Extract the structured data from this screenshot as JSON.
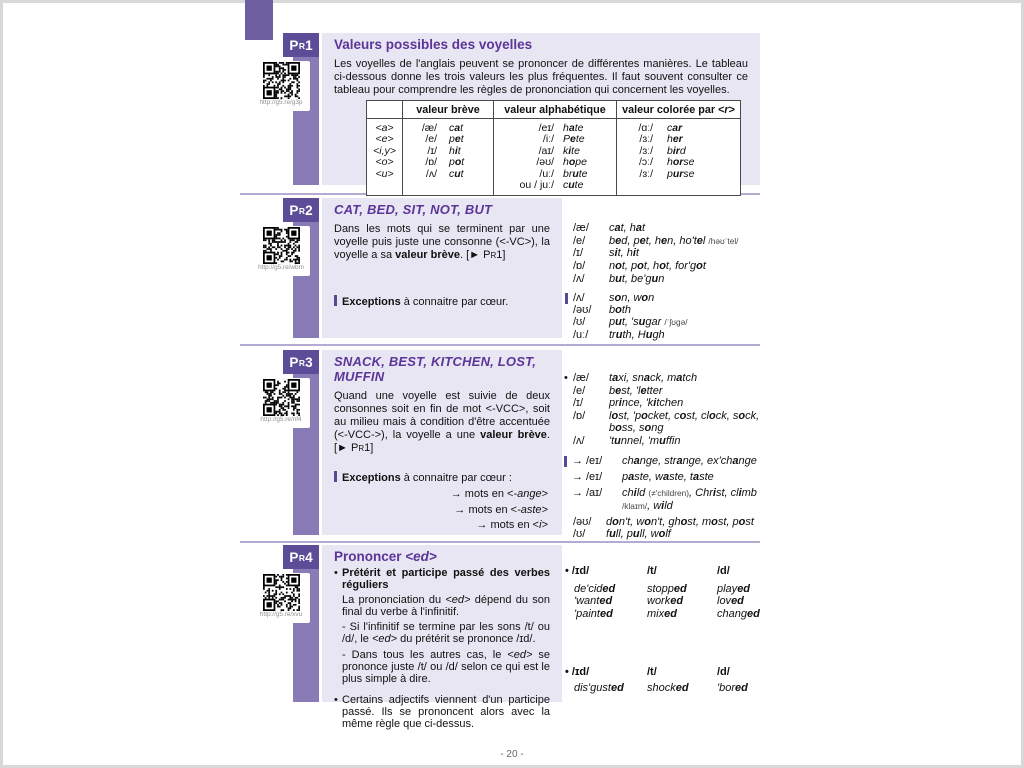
{
  "page": {
    "footer": "- 20 -",
    "bullet": "•"
  },
  "sections": [
    {
      "label": {
        "p": "P",
        "r": "R",
        "n": "1"
      },
      "qr_url": "http://g5.re/g3p",
      "title": "Valeurs possibles des voyelles",
      "intro": "Les voyelles de l'anglais peuvent se prononcer de différentes manières. Le tableau ci-dessous donne les trois valeurs les plus fréquentes. Il faut souvent consulter ce tableau pour comprendre les règles de prononciation qui concernent les voyelles.",
      "table": {
        "headers": {
          "breve": "valeur brève",
          "alpha": "valeur alphabétique",
          "rcolor": "valeur colorée par &lt;<i>r</i>&gt;"
        },
        "rows": [
          {
            "g": "<a>",
            "b_ipa": "/æ/",
            "b_w": "c<b>a</b>t",
            "a_ipa": "/eɪ/",
            "a_w": "h<b>a</b>te",
            "r_ipa": "/ɑː/",
            "r_w": "c<b>ar</b>"
          },
          {
            "g": "<e>",
            "b_ipa": "/e/",
            "b_w": "p<b>e</b>t",
            "a_ipa": "/iː/",
            "a_w": "P<b>e</b>te",
            "r_ipa": "/ɜː/",
            "r_w": "h<b>er</b>"
          },
          {
            "g": "<i,y>",
            "b_ipa": "/ɪ/",
            "b_w": "h<b>i</b>t",
            "a_ipa": "/aɪ/",
            "a_w": "k<b>i</b>te",
            "r_ipa": "/ɜː/",
            "r_w": "b<b>ir</b>d"
          },
          {
            "g": "<o>",
            "b_ipa": "/ɒ/",
            "b_w": "p<b>o</b>t",
            "a_ipa": "/əʊ/",
            "a_w": "h<b>o</b>pe",
            "r_ipa": "/ɔː/",
            "r_w": "h<b>or</b>se"
          },
          {
            "g": "<u>",
            "b_ipa": "/ʌ/",
            "b_w": "c<b>u</b>t",
            "a_ipa": "/uː/",
            "a_w": "br<b>u</b>te",
            "r_ipa": "/ɜː/",
            "r_w": "p<b>ur</b>se"
          },
          {
            "g": "",
            "b_ipa": "",
            "b_w": "",
            "a_ipa": "ou / juː/",
            "a_w": "c<b>u</b>te",
            "r_ipa": "",
            "r_w": ""
          }
        ]
      }
    },
    {
      "label": {
        "p": "P",
        "r": "R",
        "n": "2"
      },
      "qr_url": "http://g5.re/wbm",
      "title": "CAT, BED, SIT, NOT, BUT",
      "body": "Dans les mots qui se terminent par une voyelle puis juste une consonne (&lt;-VC&gt;), la voyelle a sa <b>valeur brève</b>. [► P<span class=\"sc\">R</span>1]",
      "exceptions_label": "<b>Exceptions</b> à connaitre par cœur.",
      "examples": [
        {
          "ipa": "/æ/",
          "words": "c<b>a</b>t, h<b>a</b>t"
        },
        {
          "ipa": "/e/",
          "words": "b<b>e</b>d, p<b>e</b>t, h<b>e</b>n, ho't<b>e</b>l <span class=\"sm\">/həʊˈtel/</span>"
        },
        {
          "ipa": "/ɪ/",
          "words": "s<b>i</b>t, h<b>i</b>t"
        },
        {
          "ipa": "/ɒ/",
          "words": "n<b>o</b>t, p<b>o</b>t, h<b>o</b>t, for'g<b>o</b>t"
        },
        {
          "ipa": "/ʌ/",
          "words": "b<b>u</b>t, be'g<b>u</b>n"
        }
      ],
      "exceptions": [
        {
          "ipa": "/ʌ/",
          "words": "s<b>o</b>n, w<b>o</b>n"
        },
        {
          "ipa": "/əʊ/",
          "words": "b<b>o</b>th"
        },
        {
          "ipa": "/ʊ/",
          "words": "p<b>u</b>t, 's<b>u</b>gar <span class=\"sm\">/ˈʃʊgə/</span>"
        },
        {
          "ipa": "/uː/",
          "words": "tr<b>u</b>th, H<b>u</b>gh"
        }
      ]
    },
    {
      "label": {
        "p": "P",
        "r": "R",
        "n": "3"
      },
      "qr_url": "http://g5.re/nf4",
      "title": "SNACK, BEST, KITCHEN, LOST, MUFFIN",
      "body": "Quand une voyelle est suivie de deux consonnes soit en fin de mot &lt;-VCC&gt;, soit au milieu mais à condition d'être accentuée (&lt;-VCC-&gt;), la voyelle a une <b>valeur brève</b>. [► P<span class=\"sc\">R</span>1]",
      "exceptions_label": "<b>Exceptions</b> à connaitre par cœur :",
      "exception_rules": [
        "→ mots en &lt;<i>-ange</i>&gt;",
        "→ mots en &lt;<i>-aste</i>&gt;",
        "→ mots en &lt;<i>i</i>&gt;"
      ],
      "examples": [
        {
          "lead": "•",
          "ipa": "/æ/",
          "words": "t<b>a</b>xi, sn<b>a</b>ck, m<b>a</b>tch"
        },
        {
          "lead": "",
          "ipa": "/e/",
          "words": "b<b>e</b>st, 'l<b>e</b>tter"
        },
        {
          "lead": "",
          "ipa": "/ɪ/",
          "words": "pr<b>i</b>nce, 'k<b>i</b>tchen"
        },
        {
          "lead": "",
          "ipa": "/ɒ/",
          "words": "l<b>o</b>st, 'p<b>o</b>cket, c<b>o</b>st, cl<b>o</b>ck, s<b>o</b>ck, b<b>o</b>ss, s<b>o</b>ng"
        },
        {
          "lead": "",
          "ipa": "/ʌ/",
          "words": "'t<b>u</b>nnel, 'm<b>u</b>ffin"
        }
      ],
      "exceptions": [
        {
          "lead": "→",
          "ipa": "/eɪ/",
          "words": "ch<b>a</b>nge, str<b>a</b>nge, ex'ch<b>a</b>nge"
        },
        {
          "lead": "→",
          "ipa": "/eɪ/",
          "words": "p<b>a</b>ste, w<b>a</b>ste, t<b>a</b>ste"
        },
        {
          "lead": "→",
          "ipa": "/aɪ/",
          "words": "ch<b>i</b>ld <span class=\"sm\">(≠'children)</span>, Chr<b>i</b>st, cl<b>i</b>mb <span class=\"sm\">/klaɪm/</span>, w<b>i</b>ld"
        },
        {
          "lead": "",
          "ipa": "/əʊ/",
          "words": "d<b>o</b>n't, w<b>o</b>n't, gh<b>o</b>st, m<b>o</b>st, p<b>o</b>st"
        },
        {
          "lead": "",
          "ipa": "/ʊ/",
          "words": "f<b>u</b>ll, p<b>u</b>ll, w<b>o</b>lf"
        }
      ]
    },
    {
      "label": {
        "p": "P",
        "r": "R",
        "n": "4"
      },
      "qr_url": "http://g5.re/xvu",
      "title": "Prononcer <i>&lt;ed&gt;</i>",
      "bullet1_head": "Prétérit et participe passé des verbes réguliers",
      "bullet1_p1": "La prononciation du <i>&lt;ed&gt;</i> dépend du son final du verbe à l'infinitif.",
      "bullet1_p2": "- Si l'infinitif se termine par les sons /t/ ou /d/, le <i>&lt;ed&gt;</i> du prétérit se prononce /ɪd/.",
      "bullet1_p3": "- Dans tous les autres cas, le <i>&lt;ed&gt;</i> se prononce juste /t/ ou /d/ selon ce qui est le plus simple à dire.",
      "bullet2": "Certains adjectifs viennent d'un participe passé. Ils se prononcent alors avec la même règle que ci-dessus.",
      "ed1": {
        "h1": "• /ɪd/",
        "h2": "/t/",
        "h3": "/d/",
        "rows": [
          [
            "de'cid<b>ed</b>",
            "stopp<b>ed</b>",
            "play<b>ed</b>"
          ],
          [
            "'want<b>ed</b>",
            "work<b>ed</b>",
            "lov<b>ed</b>"
          ],
          [
            "'paint<b>ed</b>",
            "mix<b>ed</b>",
            "chang<b>ed</b>"
          ]
        ]
      },
      "ed2": {
        "h1": "• /ɪd/",
        "h2": "/t/",
        "h3": "/d/",
        "rows": [
          [
            "dis'gust<b>ed</b>",
            "shock<b>ed</b>",
            "'bor<b>ed</b>"
          ]
        ]
      }
    }
  ]
}
